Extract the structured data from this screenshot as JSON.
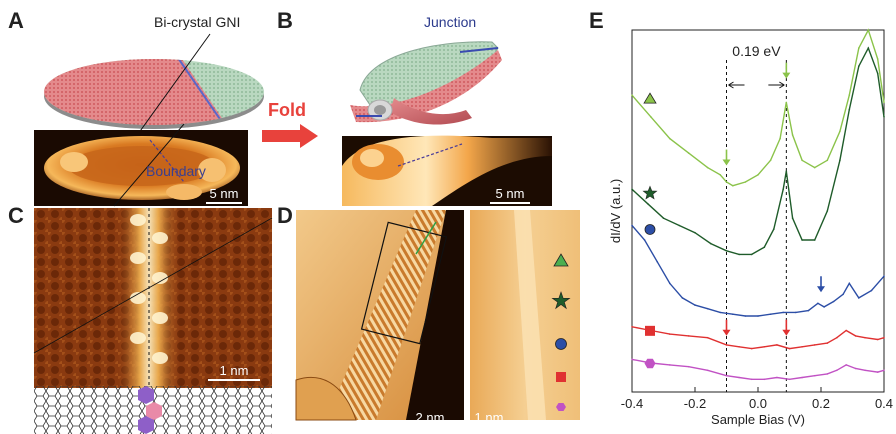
{
  "panels": {
    "a": {
      "letter": "A",
      "label_top": "Bi-crystal GNI",
      "label_boundary": "Boundary",
      "scalebar": "5 nm"
    },
    "b": {
      "letter": "B",
      "label_junction": "Junction",
      "scalebar": "5 nm"
    },
    "fold": {
      "label": "Fold"
    },
    "c": {
      "letter": "C",
      "scalebar": "1 nm"
    },
    "d": {
      "letter": "D",
      "scalebar_left": "2 nm",
      "scalebar_right": "1 nm"
    },
    "e": {
      "letter": "E",
      "gap_label": "0.19 eV"
    }
  },
  "colors": {
    "fold_arrow": "#e8423c",
    "junction_text": "#2b3a8c",
    "boundary_text": "#3b3f8f",
    "stm_bright": "#fbe3b8",
    "stm_mid": "#e8952e",
    "stm_dark": "#6b2b08"
  },
  "chart_data": {
    "type": "line",
    "title": "",
    "xlabel": "Sample Bias (V)",
    "ylabel": "dI/dV (a.u.)",
    "xlim": [
      -0.4,
      0.4
    ],
    "x_ticks": [
      "-0.4",
      "-0.2",
      "0.0",
      "0.2",
      "0.4"
    ],
    "x_tick_values": [
      -0.4,
      -0.2,
      0.0,
      0.2,
      0.4
    ],
    "gap_lines_x": [
      -0.1,
      0.09
    ],
    "series": [
      {
        "marker": "triangle",
        "color": "#8bc34a",
        "x": [
          -0.4,
          -0.34,
          -0.28,
          -0.22,
          -0.16,
          -0.12,
          -0.1,
          -0.08,
          -0.04,
          0.0,
          0.04,
          0.07,
          0.09,
          0.11,
          0.14,
          0.18,
          0.22,
          0.26,
          0.29,
          0.32,
          0.35,
          0.38,
          0.4
        ],
        "y": [
          0.82,
          0.76,
          0.7,
          0.66,
          0.62,
          0.6,
          0.58,
          0.57,
          0.58,
          0.6,
          0.64,
          0.7,
          0.8,
          0.71,
          0.64,
          0.62,
          0.64,
          0.72,
          0.82,
          0.95,
          1.0,
          0.92,
          0.8
        ]
      },
      {
        "marker": "star",
        "color": "#1f5c2a",
        "x": [
          -0.4,
          -0.35,
          -0.3,
          -0.25,
          -0.2,
          -0.15,
          -0.1,
          -0.06,
          -0.02,
          0.02,
          0.05,
          0.08,
          0.09,
          0.11,
          0.14,
          0.18,
          0.22,
          0.26,
          0.29,
          0.32,
          0.35,
          0.38,
          0.4
        ],
        "y": [
          0.56,
          0.52,
          0.48,
          0.46,
          0.44,
          0.41,
          0.39,
          0.38,
          0.38,
          0.4,
          0.45,
          0.56,
          0.61,
          0.48,
          0.42,
          0.42,
          0.5,
          0.64,
          0.78,
          0.9,
          0.95,
          0.88,
          0.76
        ]
      },
      {
        "marker": "circle",
        "color": "#2c4ea6",
        "x": [
          -0.4,
          -0.36,
          -0.32,
          -0.28,
          -0.24,
          -0.2,
          -0.16,
          -0.12,
          -0.08,
          -0.04,
          0.0,
          0.04,
          0.08,
          0.12,
          0.16,
          0.19,
          0.21,
          0.24,
          0.27,
          0.29,
          0.32,
          0.36,
          0.4
        ],
        "y": [
          0.46,
          0.42,
          0.36,
          0.3,
          0.26,
          0.24,
          0.23,
          0.22,
          0.215,
          0.21,
          0.21,
          0.215,
          0.22,
          0.22,
          0.225,
          0.245,
          0.235,
          0.25,
          0.27,
          0.3,
          0.26,
          0.28,
          0.32
        ]
      },
      {
        "marker": "square",
        "color": "#e03131",
        "x": [
          -0.4,
          -0.34,
          -0.28,
          -0.22,
          -0.16,
          -0.1,
          -0.06,
          -0.02,
          0.02,
          0.06,
          0.1,
          0.14,
          0.18,
          0.22,
          0.25,
          0.28,
          0.31,
          0.34,
          0.38,
          0.4
        ],
        "y": [
          0.18,
          0.17,
          0.16,
          0.155,
          0.15,
          0.13,
          0.125,
          0.12,
          0.125,
          0.13,
          0.12,
          0.125,
          0.13,
          0.135,
          0.15,
          0.17,
          0.155,
          0.15,
          0.145,
          0.15
        ]
      },
      {
        "marker": "hexagon",
        "color": "#c152c4",
        "x": [
          -0.4,
          -0.34,
          -0.28,
          -0.22,
          -0.16,
          -0.1,
          -0.06,
          -0.02,
          0.02,
          0.06,
          0.1,
          0.14,
          0.18,
          0.22,
          0.25,
          0.28,
          0.31,
          0.34,
          0.38,
          0.4
        ],
        "y": [
          0.09,
          0.08,
          0.075,
          0.07,
          0.06,
          0.045,
          0.04,
          0.035,
          0.035,
          0.04,
          0.035,
          0.04,
          0.045,
          0.05,
          0.06,
          0.075,
          0.065,
          0.06,
          0.055,
          0.06
        ]
      }
    ]
  }
}
